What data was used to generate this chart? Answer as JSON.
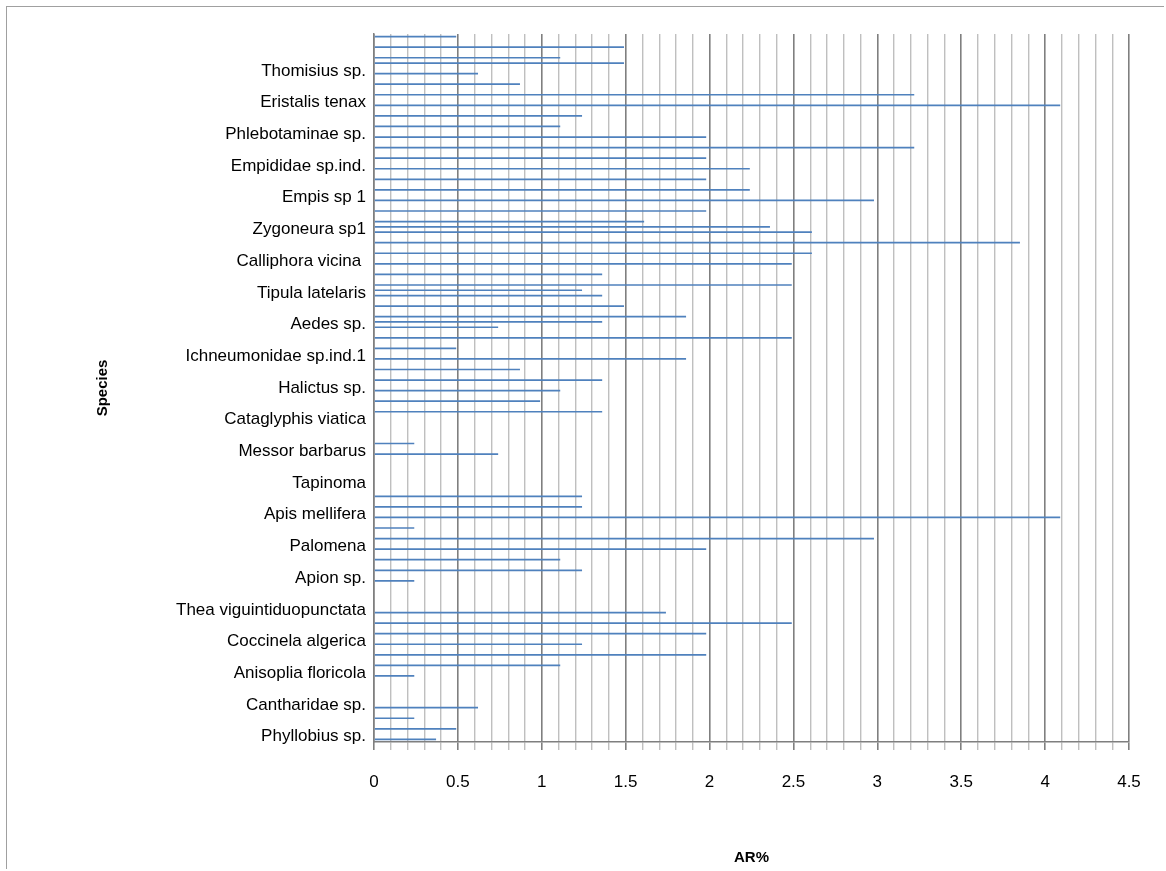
{
  "chart_data": {
    "type": "bar",
    "orientation": "horizontal",
    "xlabel": "AR%",
    "ylabel": "Species",
    "categories": [
      null,
      null,
      null,
      "Thomisius sp.",
      null,
      null,
      "Eristalis tenax",
      null,
      null,
      "Phlebotaminae sp.",
      null,
      null,
      "Empididae sp.ind.",
      null,
      null,
      "Empis sp 1",
      null,
      null,
      "Zygoneura sp1",
      null,
      null,
      "Calliphora vicina ",
      null,
      null,
      "Tipula latelaris",
      null,
      null,
      "Aedes sp.",
      null,
      null,
      "Ichneumonidae sp.ind.1",
      null,
      null,
      "Halictus sp.",
      null,
      null,
      "Cataglyphis viatica",
      null,
      null,
      "Messor barbarus",
      null,
      null,
      "Tapinoma",
      null,
      null,
      "Apis mellifera",
      null,
      null,
      "Palomena",
      null,
      null,
      "Apion sp.",
      null,
      null,
      "Thea viguintiduopunctata",
      null,
      null,
      "Coccinela algerica",
      null,
      null,
      "Anisoplia floricola",
      null,
      null,
      "Cantharidae sp.",
      null,
      null,
      "Phyllobius sp."
    ],
    "series": [
      {
        "color": "#4f81bd",
        "values": [
          0.49,
          1.49,
          1.11,
          null,
          null,
          null,
          null,
          null,
          null,
          null,
          null,
          null,
          null,
          null,
          null,
          null,
          null,
          null,
          2.36,
          null,
          null,
          null,
          null,
          null,
          1.24,
          null,
          null,
          1.36,
          null,
          null,
          null,
          null,
          null,
          null,
          null,
          null,
          null,
          null,
          null,
          null,
          null,
          null,
          null,
          null,
          null,
          null,
          null,
          null,
          null,
          null,
          null,
          null,
          null,
          null,
          null,
          null,
          null,
          null,
          null,
          null,
          null,
          null,
          null,
          null,
          null,
          null,
          null
        ]
      },
      {
        "color": "#4f81bd",
        "values": [
          null,
          null,
          1.49,
          0.62,
          0.87,
          3.22,
          4.09,
          1.24,
          1.11,
          1.98,
          3.22,
          1.98,
          2.24,
          1.98,
          2.24,
          2.98,
          1.98,
          1.61,
          2.61,
          3.85,
          2.61,
          2.49,
          1.36,
          2.49,
          1.36,
          1.49,
          1.86,
          0.74,
          2.49,
          0.49,
          1.86,
          0.87,
          1.36,
          1.11,
          0.99,
          1.36,
          null,
          null,
          0.24,
          0.74,
          null,
          null,
          null,
          1.24,
          1.24,
          4.09,
          0.24,
          2.98,
          1.98,
          1.11,
          1.24,
          0.24,
          null,
          null,
          1.74,
          2.49,
          1.98,
          1.24,
          1.98,
          1.11,
          0.24,
          null,
          null,
          0.62,
          0.24,
          0.49,
          0.37
        ]
      }
    ],
    "xlim": [
      0,
      4.5
    ],
    "xticks": [
      0,
      {
        "value": 0.1,
        "label": null
      },
      {
        "value": 0.2,
        "label": null
      },
      {
        "value": 0.3,
        "label": null
      },
      {
        "value": 0.4,
        "label": null
      },
      0.5,
      {
        "value": 0.6,
        "label": null
      },
      {
        "value": 0.7,
        "label": null
      },
      {
        "value": 0.8,
        "label": null
      },
      {
        "value": 0.9,
        "label": null
      },
      1,
      {
        "value": 1.1,
        "label": null
      },
      {
        "value": 1.2,
        "label": null
      },
      {
        "value": 1.3,
        "label": null
      },
      {
        "value": 1.4,
        "label": null
      },
      1.5,
      {
        "value": 1.6,
        "label": null
      },
      {
        "value": 1.7,
        "label": null
      },
      {
        "value": 1.8,
        "label": null
      },
      {
        "value": 1.9,
        "label": null
      },
      2,
      {
        "value": 2.1,
        "label": null
      },
      {
        "value": 2.2,
        "label": null
      },
      {
        "value": 2.3,
        "label": null
      },
      {
        "value": 2.4,
        "label": null
      },
      2.5,
      {
        "value": 2.6,
        "label": null
      },
      {
        "value": 2.7,
        "label": null
      },
      {
        "value": 2.8,
        "label": null
      },
      {
        "value": 2.9,
        "label": null
      },
      3,
      {
        "value": 3.1,
        "label": null
      },
      {
        "value": 3.2,
        "label": null
      },
      {
        "value": 3.3,
        "label": null
      },
      {
        "value": 3.4,
        "label": null
      },
      3.5,
      {
        "value": 3.6,
        "label": null
      },
      {
        "value": 3.7,
        "label": null
      },
      {
        "value": 3.8,
        "label": null
      },
      {
        "value": 3.9,
        "label": null
      },
      4,
      {
        "value": 4.1,
        "label": null
      },
      {
        "value": 4.2,
        "label": null
      },
      {
        "value": 4.3,
        "label": null
      },
      {
        "value": 4.4,
        "label": null
      },
      4.5
    ],
    "grid": "x"
  }
}
